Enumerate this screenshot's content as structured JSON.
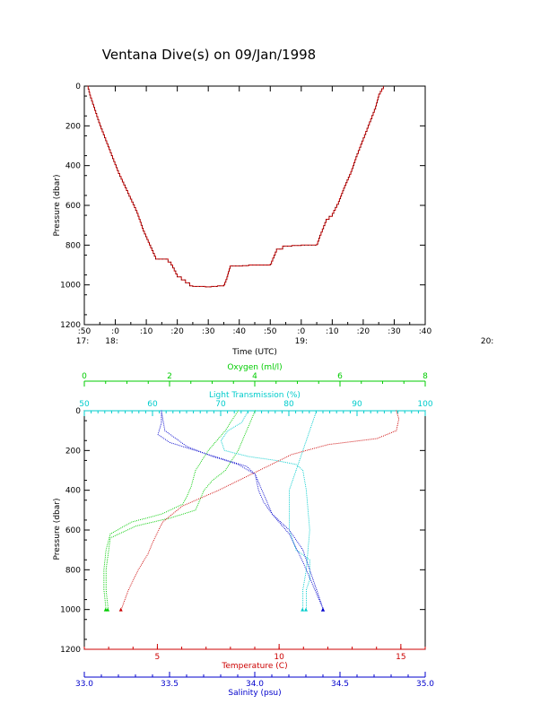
{
  "title": "Ventana Dive(s) on 09/Jan/1998",
  "colors": {
    "pressure_trace": "#cc0000",
    "oxygen": "#00cc00",
    "light_transmission": "#00cccc",
    "temperature": "#cc0000",
    "salinity": "#0000cc"
  },
  "chart_data": [
    {
      "type": "line",
      "title": "Ventana Dive(s) on 09/Jan/1998",
      "xlabel": "Time (UTC)",
      "ylabel": "Pressure (dbar)",
      "x_units": "minutes after 17:00 UTC",
      "xlim": [
        50,
        160
      ],
      "ylim": [
        1200,
        0
      ],
      "x_tick_labels": [
        ":50",
        ":0",
        ":10",
        ":20",
        ":30",
        ":40",
        ":50",
        ":0",
        ":10",
        ":20",
        ":30",
        ":40",
        ":50",
        ":0",
        ":10",
        ":20",
        ":30",
        ":40"
      ],
      "x_hour_labels": [
        "17:",
        "18:",
        "19:",
        "20:"
      ],
      "y_tick_labels": [
        "0",
        "200",
        "400",
        "600",
        "800",
        "1000",
        "1200"
      ],
      "series": [
        {
          "x": [
            51,
            52,
            55,
            58,
            61,
            64,
            67,
            69,
            71,
            73,
            75,
            76,
            78,
            80,
            84,
            85,
            87,
            89,
            91,
            93,
            95,
            96,
            97,
            100,
            101,
            103,
            103.5,
            110,
            112,
            114,
            115,
            117,
            118,
            120,
            122,
            124,
            125,
            126,
            128,
            130,
            131,
            132,
            133,
            134,
            136,
            138,
            140,
            142,
            144,
            145,
            146.5
          ],
          "y": [
            0,
            60,
            200,
            320,
            440,
            540,
            640,
            730,
            800,
            870,
            870,
            870,
            900,
            960,
            1005,
            1008,
            1008,
            1010,
            1008,
            1005,
            1000,
            960,
            905,
            905,
            903,
            900,
            900,
            895,
            820,
            805,
            805,
            802,
            802,
            800,
            800,
            800,
            795,
            750,
            670,
            640,
            610,
            580,
            540,
            500,
            430,
            340,
            260,
            180,
            100,
            40,
            0
          ]
        }
      ]
    },
    {
      "type": "line",
      "xlabel": "Temperature (C)",
      "ylabel": "Pressure (dbar)",
      "ylim": [
        1200,
        0
      ],
      "y_tick_labels": [
        "0",
        "200",
        "400",
        "600",
        "800",
        "1000",
        "1200"
      ],
      "axes": {
        "oxygen": {
          "label": "Oxygen (ml/l)",
          "range": [
            0,
            8
          ],
          "ticks": [
            "0",
            "2",
            "4",
            "6",
            "8"
          ]
        },
        "light_transmission": {
          "label": "Light Transmission (%)",
          "range": [
            50,
            100
          ],
          "ticks": [
            "50",
            "60",
            "70",
            "80",
            "90",
            "100"
          ]
        },
        "temperature": {
          "label": "Temperature (C)",
          "range": [
            2,
            16
          ],
          "ticks": [
            "5",
            "10",
            "15"
          ]
        },
        "salinity": {
          "label": "Salinity (psu)",
          "range": [
            33.0,
            35.0
          ],
          "ticks": [
            "33.0",
            "33.5",
            "34.0",
            "34.5",
            "35.0"
          ]
        }
      },
      "series": [
        {
          "name": "Oxygen (ml/l)",
          "axis": "oxygen",
          "branches": [
            {
              "x": [
                3.6,
                3.3,
                2.9,
                2.6,
                2.5,
                2.4,
                2.3,
                1.8,
                1.1,
                0.6,
                0.5,
                0.45,
                0.45,
                0.5
              ],
              "y": [
                0,
                100,
                200,
                300,
                380,
                430,
                470,
                520,
                560,
                620,
                700,
                800,
                900,
                1000
              ]
            },
            {
              "x": [
                4.0,
                3.8,
                3.6,
                3.3,
                3.0,
                2.8,
                2.7,
                2.6,
                2.0,
                1.2,
                0.6,
                0.5,
                0.5,
                0.55
              ],
              "y": [
                0,
                100,
                200,
                300,
                350,
                400,
                450,
                500,
                540,
                580,
                640,
                800,
                900,
                1000
              ]
            }
          ]
        },
        {
          "name": "Light Transmission (%)",
          "axis": "light_transmission",
          "branches": [
            {
              "x": [
                74,
                73,
                71,
                70,
                70.5,
                74,
                78,
                81,
                82,
                82.5,
                83,
                82.5,
                82,
                82
              ],
              "y": [
                0,
                60,
                100,
                150,
                200,
                230,
                250,
                270,
                300,
                400,
                600,
                800,
                900,
                1000
              ]
            },
            {
              "x": [
                84,
                83,
                82,
                81,
                80,
                80,
                80,
                81,
                83,
                83,
                83,
                82.5,
                82.5
              ],
              "y": [
                0,
                100,
                200,
                300,
                400,
                500,
                600,
                700,
                750,
                800,
                850,
                900,
                1000
              ]
            }
          ]
        },
        {
          "name": "Temperature (C)",
          "axis": "temperature",
          "branches": [
            {
              "x": [
                14.8,
                14.9,
                14.8,
                14.0,
                12.0,
                10.5,
                9.5,
                8.5,
                7.5,
                6.0,
                5.2,
                4.8,
                4.6,
                4.2,
                3.8,
                3.5
              ],
              "y": [
                0,
                40,
                100,
                140,
                170,
                220,
                280,
                340,
                400,
                480,
                560,
                660,
                720,
                800,
                900,
                1000
              ]
            }
          ]
        },
        {
          "name": "Salinity (psu)",
          "axis": "salinity",
          "branches": [
            {
              "x": [
                33.45,
                33.45,
                33.43,
                33.5,
                33.65,
                33.8,
                33.95,
                34.0,
                34.02,
                34.05,
                34.1,
                34.2,
                34.28,
                34.32,
                34.36,
                34.4
              ],
              "y": [
                0,
                60,
                120,
                160,
                200,
                240,
                280,
                320,
                400,
                460,
                520,
                600,
                700,
                800,
                900,
                1000
              ]
            },
            {
              "x": [
                33.45,
                33.47,
                33.6,
                33.75,
                33.9,
                34.0,
                34.05,
                34.1,
                34.2,
                34.28,
                34.34,
                34.4
              ],
              "y": [
                0,
                100,
                180,
                230,
                270,
                320,
                420,
                520,
                620,
                760,
                880,
                1000
              ]
            }
          ]
        }
      ]
    }
  ]
}
